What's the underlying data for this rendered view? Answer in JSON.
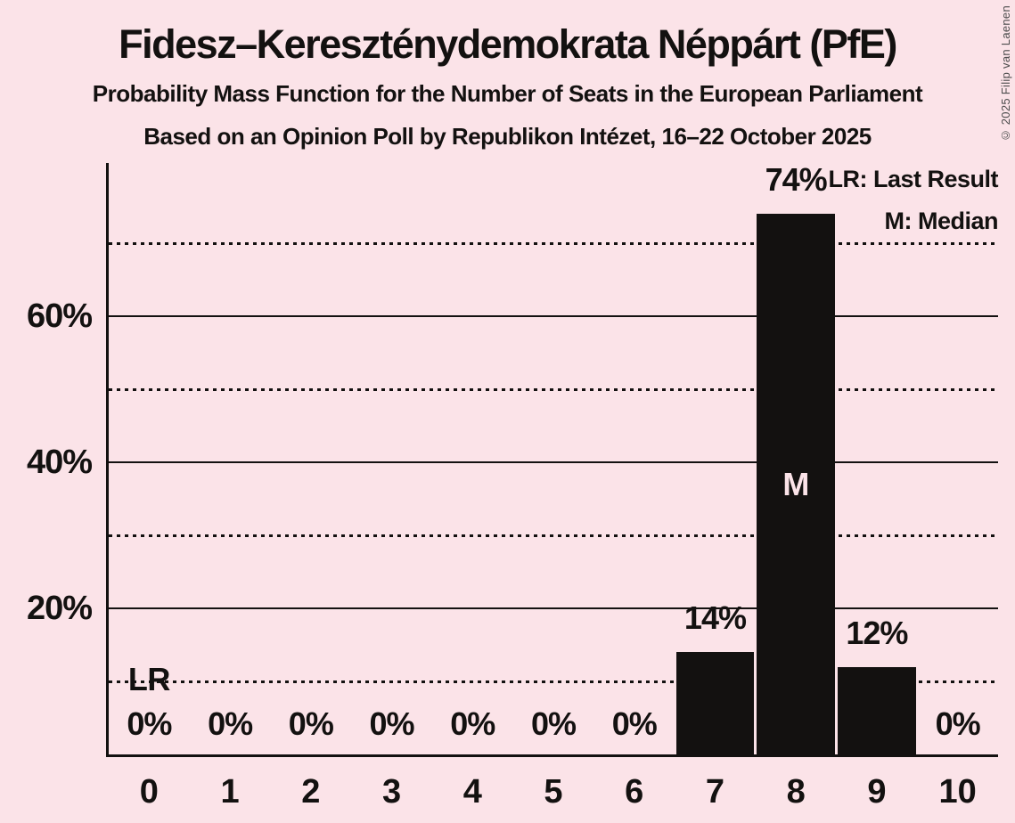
{
  "header": {
    "title": "Fidesz–Kereszténydemokrata Néppárt (PfE)",
    "subtitle": "Probability Mass Function for the Number of Seats in the European Parliament",
    "poll_line": "Based on an Opinion Poll by Republikon Intézet, 16–22 October 2025"
  },
  "copyright": "© 2025 Filip van Laenen",
  "legend": {
    "lr_label": "LR: Last Result",
    "m_label": "M: Median"
  },
  "colors": {
    "background": "#fbe3e8",
    "ink": "#131110",
    "bar": "#131110",
    "median_text": "#fbe3e8"
  },
  "chart_data": {
    "type": "bar",
    "title": "Fidesz–Kereszténydemokrata Néppárt (PfE)",
    "subtitle": "Probability Mass Function for the Number of Seats in the European Parliament",
    "xlabel": "",
    "ylabel": "",
    "categories": [
      0,
      1,
      2,
      3,
      4,
      5,
      6,
      7,
      8,
      9,
      10
    ],
    "values": [
      0,
      0,
      0,
      0,
      0,
      0,
      0,
      14,
      74,
      12,
      0
    ],
    "bar_labels": [
      "0%",
      "0%",
      "0%",
      "0%",
      "0%",
      "0%",
      "0%",
      "14%",
      "74%",
      "12%",
      "0%"
    ],
    "ylim": [
      0,
      80
    ],
    "yticks": [
      {
        "value": 20,
        "label": "20%"
      },
      {
        "value": 40,
        "label": "40%"
      },
      {
        "value": 60,
        "label": "60%"
      }
    ],
    "dotted_gridlines": [
      10,
      30,
      50,
      70
    ],
    "grid": "horizontal",
    "legend_position": "top-right",
    "median": {
      "seat": 8,
      "marker": "M"
    },
    "last_result": {
      "seat": 0,
      "marker": "LR"
    }
  }
}
